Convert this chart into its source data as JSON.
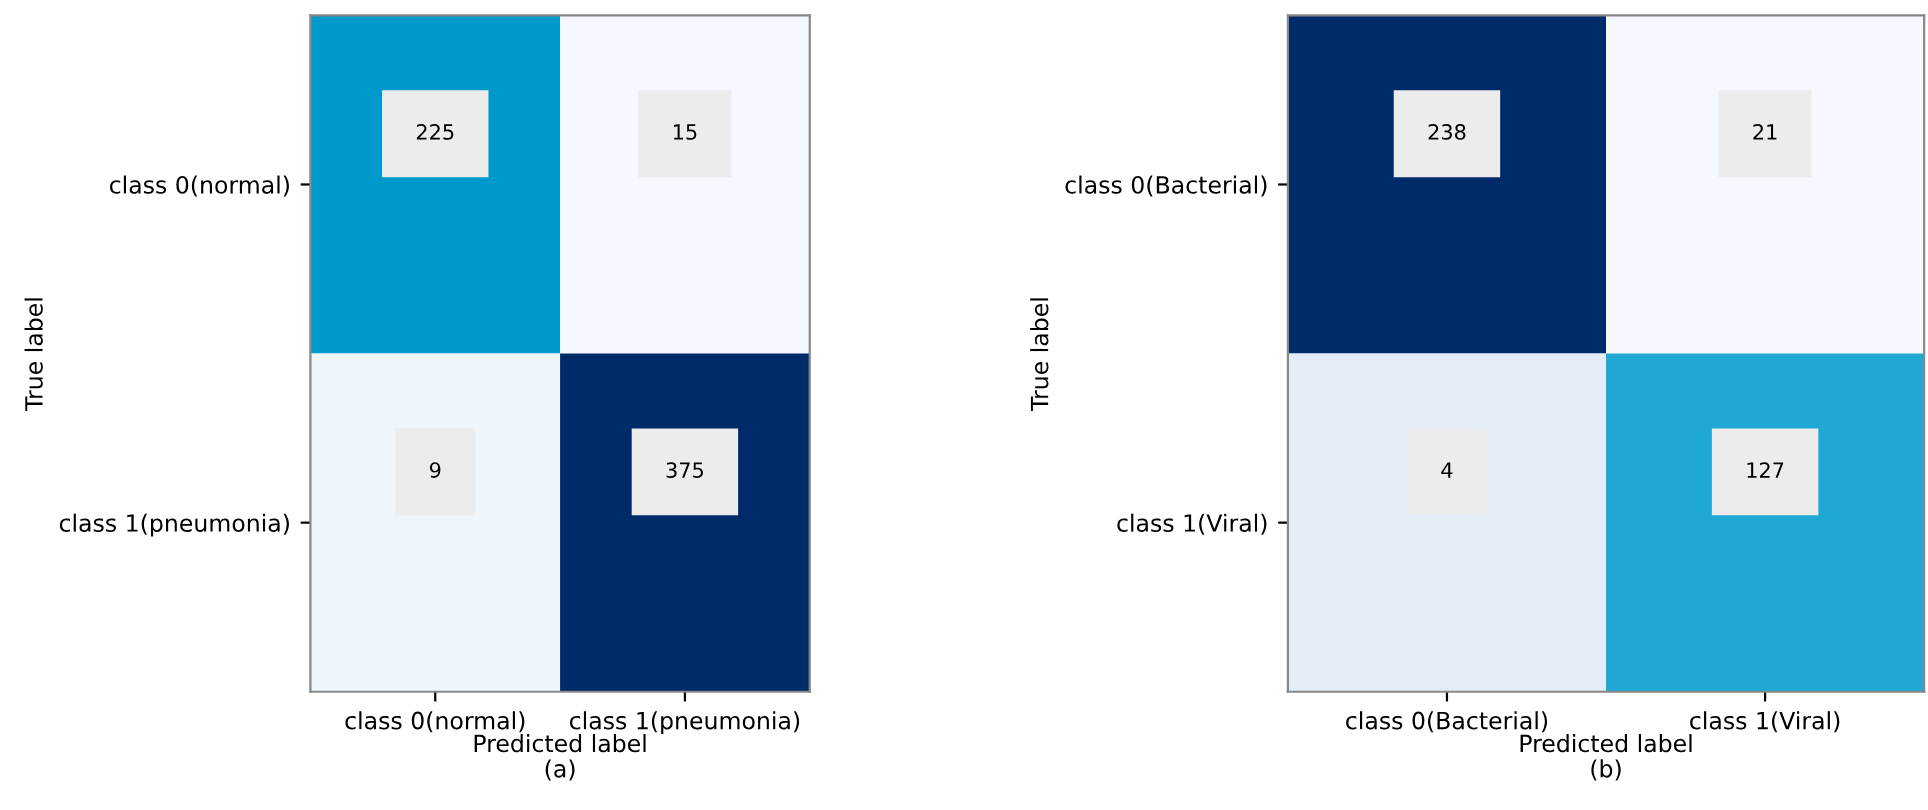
{
  "chart_data": [
    {
      "type": "heatmap",
      "xlabel": "Predicted label",
      "ylabel": "True label",
      "categories": [
        "class 0(normal)",
        "class 1(pneumonia)"
      ],
      "y_categories": [
        "class 0(normal)",
        "class 1(pneumonia)"
      ],
      "cells": [
        [
          225,
          15
        ],
        [
          9,
          375
        ]
      ],
      "colors": [
        [
          "#0099cc",
          "#f5f9ff"
        ],
        [
          "#eef5fb",
          "#002b6b"
        ]
      ],
      "data_labels": true,
      "annotations": [
        "(a)"
      ]
    },
    {
      "type": "heatmap",
      "xlabel": "Predicted label",
      "ylabel": "True label",
      "categories": [
        "class 0(Bacterial)",
        "class 1(Viral)"
      ],
      "y_categories": [
        "class 0(Bacterial)",
        "class 1(Viral)"
      ],
      "cells": [
        [
          238,
          21
        ],
        [
          4,
          127
        ]
      ],
      "colors": [
        [
          "#002b6b",
          "#f5f9ff"
        ],
        [
          "#e2edf8",
          "#1fa8d4"
        ]
      ],
      "data_labels": true,
      "annotations": [
        "(b)"
      ]
    }
  ]
}
